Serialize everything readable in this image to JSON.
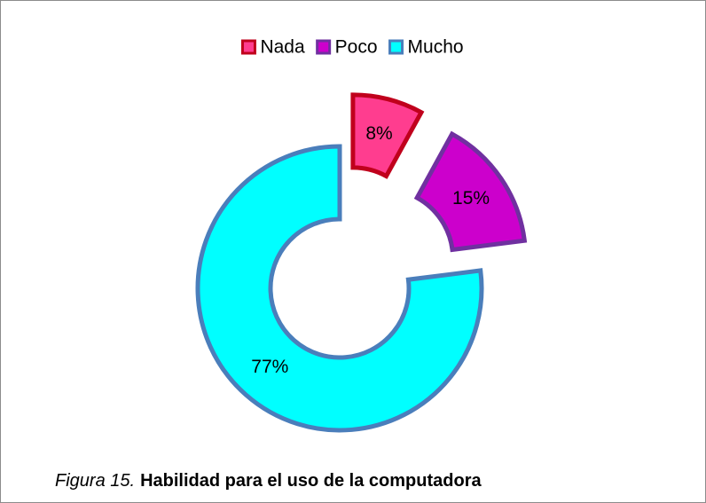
{
  "chart_data": {
    "type": "donut",
    "categories": [
      "Nada",
      "Poco",
      "Mucho"
    ],
    "values": [
      8,
      15,
      77
    ],
    "value_labels": [
      "8%",
      "15%",
      "77%"
    ],
    "colors": [
      "#ff3d8f",
      "#cc00cc",
      "#00ffff"
    ],
    "border_colors": [
      "#c0001c",
      "#7030a0",
      "#4a7ebb"
    ],
    "legend": "top",
    "figure_label": "Figura 15.",
    "title": "Habilidad para el uso de la computadora"
  }
}
